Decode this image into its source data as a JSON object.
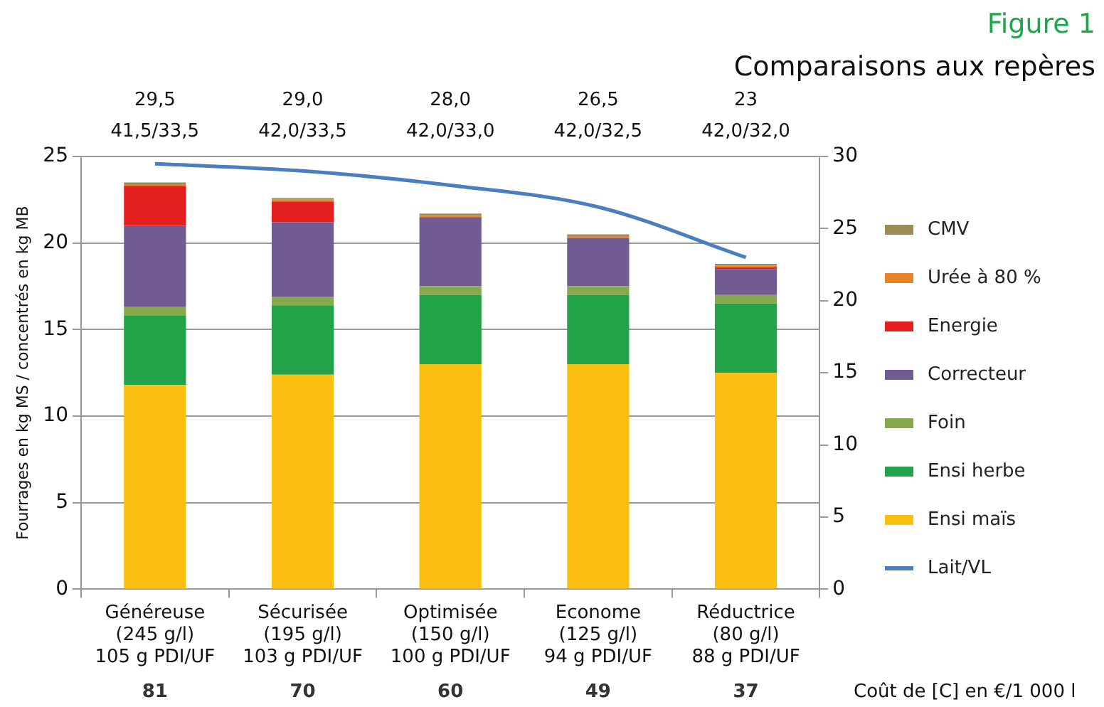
{
  "chart_data": {
    "type": "bar",
    "title": "Figure 1",
    "subtitle": "Comparaisons aux repères",
    "ylabel": "Fourrages en kg MS / concentrés en kg MB",
    "categories": [
      "Généreuse\n(245 g/l)\n105 g PDI/UF",
      "Sécurisée\n(195 g/l)\n103 g PDI/UF",
      "Optimisée\n(150 g/l)\n100 g PDI/UF",
      "Econome\n(125 g/l)\n94 g PDI/UF",
      "Réductrice\n(80 g/l)\n88 g PDI/UF"
    ],
    "stacked": true,
    "ylim": [
      0,
      25
    ],
    "yticks": [
      0,
      5,
      10,
      15,
      20,
      25
    ],
    "y2lim": [
      0,
      30
    ],
    "y2ticks": [
      0,
      5,
      10,
      15,
      20,
      25,
      30
    ],
    "grid": "y",
    "legend": "right",
    "series": [
      {
        "name": "Ensi maïs",
        "color": "#fbbf0f",
        "values": [
          11.8,
          12.4,
          13.0,
          13.0,
          12.5
        ]
      },
      {
        "name": "Ensi herbe",
        "color": "#22a34a",
        "values": [
          4.0,
          4.0,
          4.0,
          4.0,
          4.0
        ]
      },
      {
        "name": "Foin",
        "color": "#86a94d",
        "values": [
          0.5,
          0.5,
          0.5,
          0.5,
          0.5
        ]
      },
      {
        "name": "Correcteur",
        "color": "#725a92",
        "values": [
          4.7,
          4.3,
          4.0,
          2.8,
          1.5
        ]
      },
      {
        "name": "Energie",
        "color": "#e3201f",
        "values": [
          2.3,
          1.2,
          0,
          0,
          0.1
        ]
      },
      {
        "name": "Urée à 80 %",
        "color": "#e8832a",
        "values": [
          0.1,
          0.1,
          0.1,
          0.1,
          0.1
        ]
      },
      {
        "name": "CMV",
        "color": "#9c8c55",
        "values": [
          0.1,
          0.1,
          0.1,
          0.1,
          0.1
        ]
      },
      {
        "name": "Lait/VL",
        "type": "line",
        "axis": "y2",
        "color": "#4a7ebf",
        "values": [
          29.5,
          29.0,
          28.0,
          26.5,
          23
        ],
        "value_labels": [
          "29,5",
          "29,0",
          "28,0",
          "26,5",
          "23"
        ]
      }
    ],
    "annotations": [
      "41,5/33,5",
      "42,0/33,5",
      "42,0/33,0",
      "42,0/32,5",
      "42,0/32,0",
      "81",
      "70",
      "60",
      "49",
      "37",
      "Coût de [C] en €/1 000 l"
    ]
  }
}
